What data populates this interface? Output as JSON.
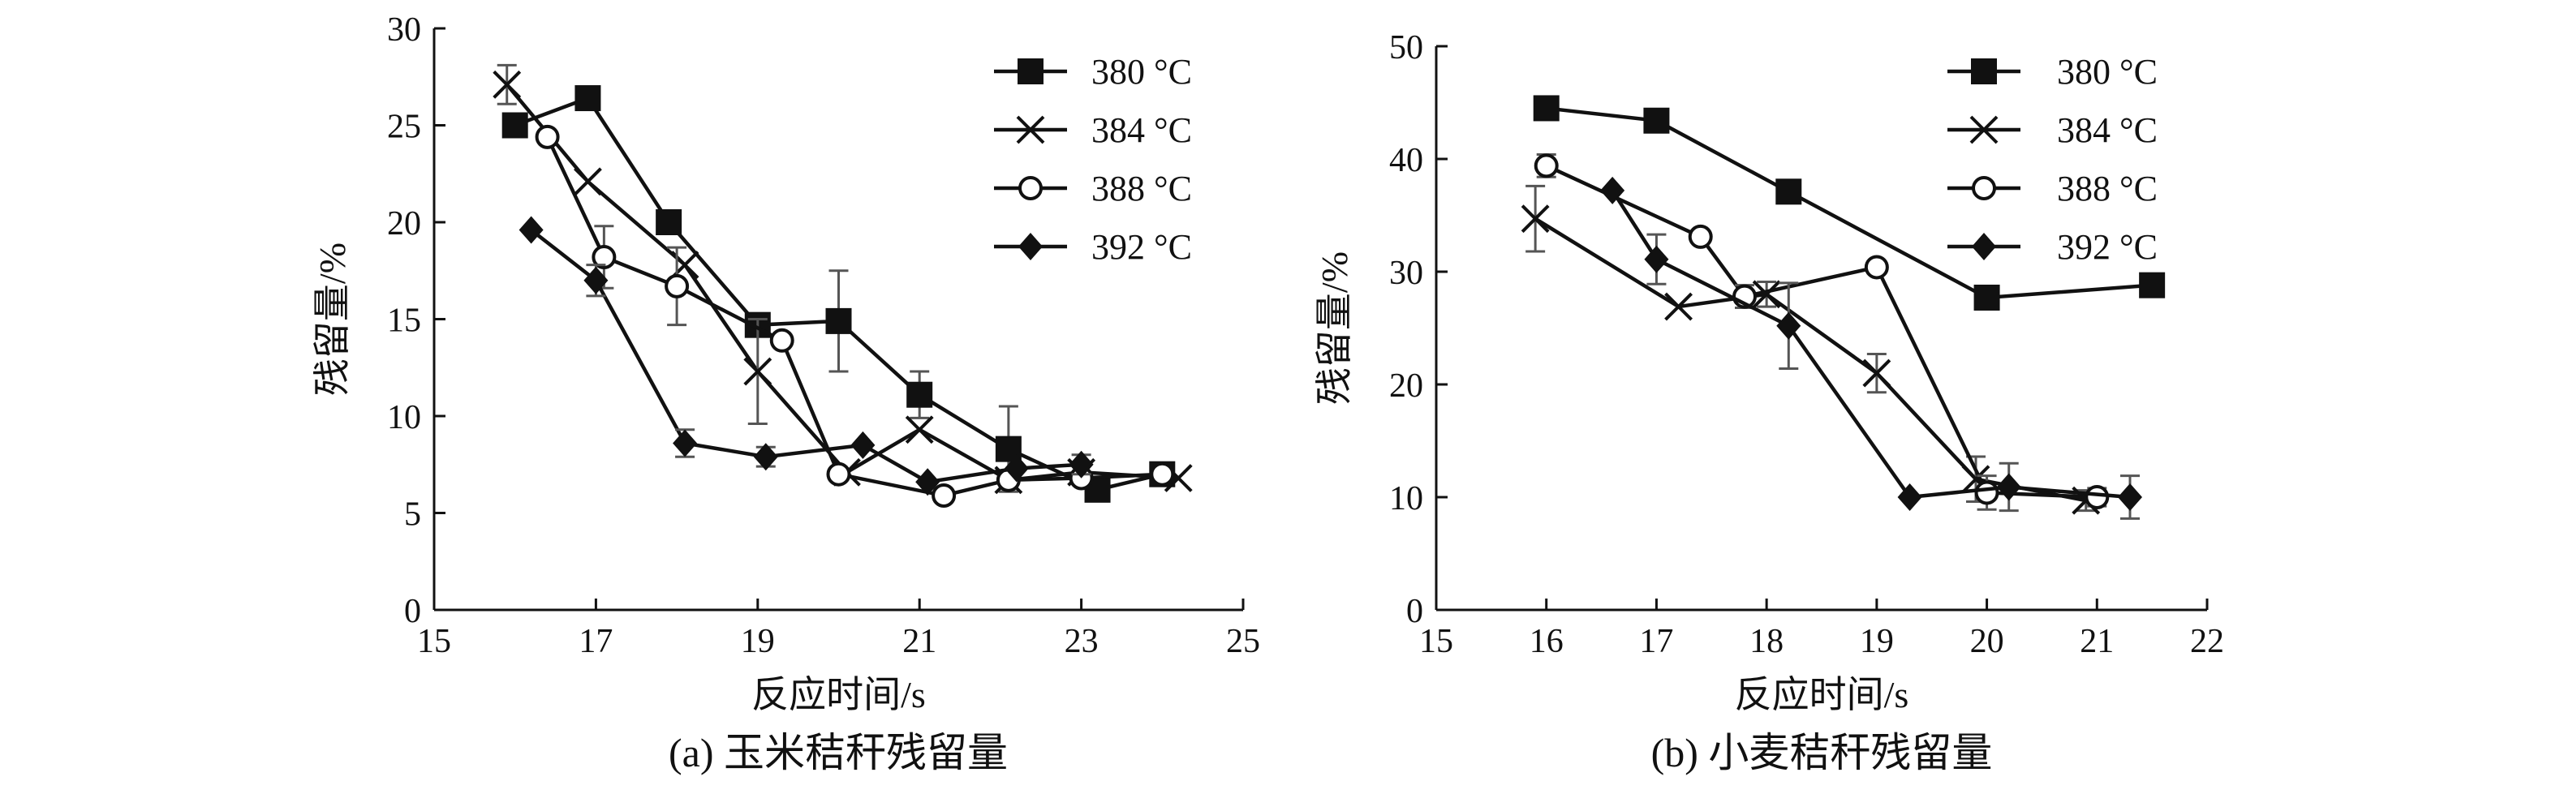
{
  "chart_data": [
    {
      "type": "line",
      "id": "a",
      "caption": "(a) 玉米秸秆残留量",
      "xlabel": "反应时间/s",
      "ylabel": "残留量/%",
      "xlim": [
        15,
        25
      ],
      "ylim": [
        0,
        30
      ],
      "xticks": [
        15,
        17,
        19,
        21,
        23,
        25
      ],
      "yticks": [
        0,
        5,
        10,
        15,
        20,
        25,
        30
      ],
      "legend_position": "top-right",
      "series": [
        {
          "name": "380 °C",
          "marker": "square",
          "x": [
            16.0,
            16.9,
            17.9,
            19.0,
            20.0,
            21.0,
            22.1,
            23.2,
            24.0
          ],
          "y": [
            25.0,
            26.4,
            20.0,
            14.7,
            14.9,
            11.1,
            8.3,
            6.2,
            7.0
          ],
          "err": [
            0,
            0,
            0,
            0,
            2.6,
            1.2,
            2.2,
            0,
            0
          ]
        },
        {
          "name": "384 °C",
          "marker": "x",
          "x": [
            15.9,
            16.9,
            18.1,
            19.0,
            20.1,
            21.0,
            22.1,
            23.0,
            24.2
          ],
          "y": [
            27.1,
            22.1,
            17.8,
            12.3,
            7.1,
            9.3,
            6.7,
            7.1,
            6.8
          ],
          "err": [
            1.0,
            0,
            0,
            2.7,
            0,
            0,
            0,
            0,
            0
          ]
        },
        {
          "name": "388 °C",
          "marker": "circle",
          "x": [
            16.4,
            17.1,
            18.0,
            19.3,
            20.0,
            21.3,
            22.1,
            23.0,
            24.0
          ],
          "y": [
            24.4,
            18.2,
            16.7,
            13.9,
            7.0,
            5.9,
            6.7,
            6.8,
            7.0
          ],
          "err": [
            0,
            1.6,
            2.0,
            0,
            0,
            0,
            0,
            0,
            0
          ]
        },
        {
          "name": "392 °C",
          "marker": "diamond",
          "x": [
            16.2,
            17.0,
            18.1,
            19.1,
            20.3,
            21.1,
            22.2,
            23.0
          ],
          "y": [
            19.6,
            17.0,
            8.6,
            7.9,
            8.5,
            6.6,
            7.3,
            7.5
          ],
          "err": [
            0,
            0.8,
            0.7,
            0.5,
            0,
            0,
            0,
            0.5
          ]
        }
      ]
    },
    {
      "type": "line",
      "id": "b",
      "caption": "(b) 小麦秸秆残留量",
      "xlabel": "反应时间/s",
      "ylabel": "残留量/%",
      "xlim": [
        15,
        22
      ],
      "ylim": [
        0,
        50
      ],
      "xticks": [
        15,
        16,
        17,
        18,
        19,
        20,
        21,
        22
      ],
      "yticks": [
        0,
        10,
        20,
        30,
        40,
        50
      ],
      "legend_position": "top-right",
      "series": [
        {
          "name": "380 °C",
          "marker": "square",
          "x": [
            16.0,
            17.0,
            18.2,
            20.0,
            21.5
          ],
          "y": [
            44.5,
            43.4,
            37.1,
            27.7,
            28.8
          ],
          "err": [
            0,
            0,
            0,
            0,
            0
          ]
        },
        {
          "name": "384 °C",
          "marker": "x",
          "x": [
            15.9,
            17.2,
            18.0,
            19.0,
            19.9,
            20.9
          ],
          "y": [
            34.7,
            26.9,
            28.0,
            21.0,
            11.6,
            9.7
          ],
          "err": [
            2.9,
            0,
            1.1,
            1.7,
            2.0,
            0.9
          ]
        },
        {
          "name": "388 °C",
          "marker": "circle",
          "x": [
            16.0,
            17.4,
            17.8,
            19.0,
            20.0,
            21.0
          ],
          "y": [
            39.4,
            33.1,
            27.8,
            30.4,
            10.4,
            10.0
          ],
          "err": [
            1.0,
            0,
            1.0,
            0,
            1.5,
            0.8
          ]
        },
        {
          "name": "392 °C",
          "marker": "diamond",
          "x": [
            16.6,
            17.0,
            18.2,
            19.3,
            20.2,
            21.3
          ],
          "y": [
            37.2,
            31.1,
            25.2,
            10.0,
            10.9,
            10.0
          ],
          "err": [
            0,
            2.2,
            3.8,
            0,
            2.1,
            1.9
          ]
        }
      ]
    }
  ]
}
